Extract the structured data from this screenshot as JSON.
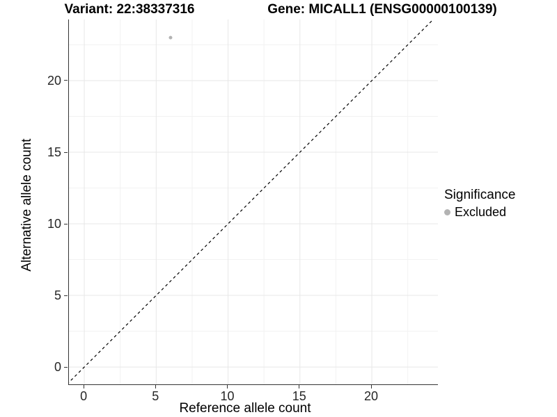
{
  "chart_data": {
    "type": "scatter",
    "title_left": "Variant: 22:38337316",
    "title_right": "Gene: MICALL1 (ENSG00000100139)",
    "xlabel": "Reference allele count",
    "ylabel": "Alternative allele count",
    "xlim": [
      -1.07,
      24.6
    ],
    "ylim": [
      -1.21,
      24.27
    ],
    "xticks": [
      0,
      5,
      10,
      15,
      20
    ],
    "yticks": [
      0,
      5,
      10,
      15,
      20
    ],
    "grid": {
      "show": true,
      "major_step": 5,
      "minor_step": 2.5,
      "major_color": "#e7e7e7",
      "minor_color": "#f2f2f2"
    },
    "series": [
      {
        "name": "Excluded",
        "color": "#b3b3b3",
        "marker": "circle",
        "radius_px": 2.5,
        "points": [
          {
            "x": 6,
            "y": 23
          }
        ]
      }
    ],
    "reference_line": {
      "equation": "y = x",
      "style": "dashed",
      "color": "#000000"
    },
    "legend": {
      "title": "Significance",
      "position": "right",
      "entries": [
        {
          "label": "Excluded",
          "color": "#b3b3b3"
        }
      ]
    },
    "axis_color": "#333333",
    "tick_label_color": "#262626"
  }
}
